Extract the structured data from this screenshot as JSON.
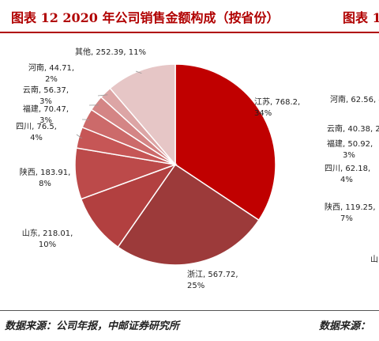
{
  "title_left": "图表 12 2020 年公司销售金额构成（按省份）",
  "title_right": "图表 1",
  "source_left": "数据来源：公司年报，中邮证券研究所",
  "source_right": "数据来源：",
  "chart_data": [
    {
      "type": "pie",
      "title": "",
      "slices": [
        {
          "name": "江苏",
          "value": 768.2,
          "pct": "34%",
          "color": "#c00000"
        },
        {
          "name": "浙江",
          "value": 567.72,
          "pct": "25%",
          "color": "#9c3a3a"
        },
        {
          "name": "山东",
          "value": 218.01,
          "pct": "10%",
          "color": "#b24040"
        },
        {
          "name": "陕西",
          "value": 183.91,
          "pct": "8%",
          "color": "#bc4a4a"
        },
        {
          "name": "四川",
          "value": 76.5,
          "pct": "4%",
          "color": "#c65656"
        },
        {
          "name": "福建",
          "value": 70.47,
          "pct": "3%",
          "color": "#cc6a6a"
        },
        {
          "name": "云南",
          "value": 56.37,
          "pct": "3%",
          "color": "#d48585"
        },
        {
          "name": "河南",
          "value": 44.71,
          "pct": "2%",
          "color": "#dca5a5"
        },
        {
          "name": "其他",
          "value": 252.39,
          "pct": "11%",
          "color": "#e6c6c6"
        }
      ]
    },
    {
      "type": "pie",
      "title": "",
      "partial": true,
      "slices": [
        {
          "name": "河南",
          "value": 62.56,
          "pct": ""
        },
        {
          "name": "云南",
          "value": 40.38,
          "pct": ""
        },
        {
          "name": "福建",
          "value": 50.92,
          "pct": "3%"
        },
        {
          "name": "四川",
          "value": 62.18,
          "pct": "4%"
        },
        {
          "name": "陕西",
          "value": 119.25,
          "pct": "7%"
        },
        {
          "name": "山",
          "value": null,
          "pct": ""
        }
      ]
    }
  ],
  "right_labels": [
    {
      "line1": "河南, 62.56, 4",
      "line2": ""
    },
    {
      "line1": "云南, 40.38, 2%",
      "line2": ""
    },
    {
      "line1": "福建, 50.92,",
      "line2": "3%"
    },
    {
      "line1": "四川, 62.18,",
      "line2": "4%"
    },
    {
      "line1": "陕西, 119.25,",
      "line2": "7%"
    },
    {
      "line1": "山",
      "line2": ""
    }
  ]
}
